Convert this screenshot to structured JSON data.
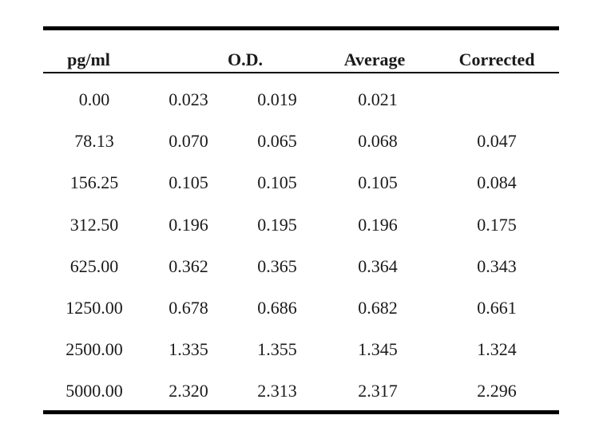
{
  "table": {
    "headers": {
      "concentration": "pg/ml",
      "od": "O.D.",
      "average": "Average",
      "corrected": "Corrected"
    },
    "rows": [
      [
        "0.00",
        "0.023",
        "0.019",
        "0.021",
        ""
      ],
      [
        "78.13",
        "0.070",
        "0.065",
        "0.068",
        "0.047"
      ],
      [
        "156.25",
        "0.105",
        "0.105",
        "0.105",
        "0.084"
      ],
      [
        "312.50",
        "0.196",
        "0.195",
        "0.196",
        "0.175"
      ],
      [
        "625.00",
        "0.362",
        "0.365",
        "0.364",
        "0.343"
      ],
      [
        "1250.00",
        "0.678",
        "0.686",
        "0.682",
        "0.661"
      ],
      [
        "2500.00",
        "1.335",
        "1.355",
        "1.345",
        "1.324"
      ],
      [
        "5000.00",
        "2.320",
        "2.313",
        "2.317",
        "2.296"
      ]
    ]
  }
}
